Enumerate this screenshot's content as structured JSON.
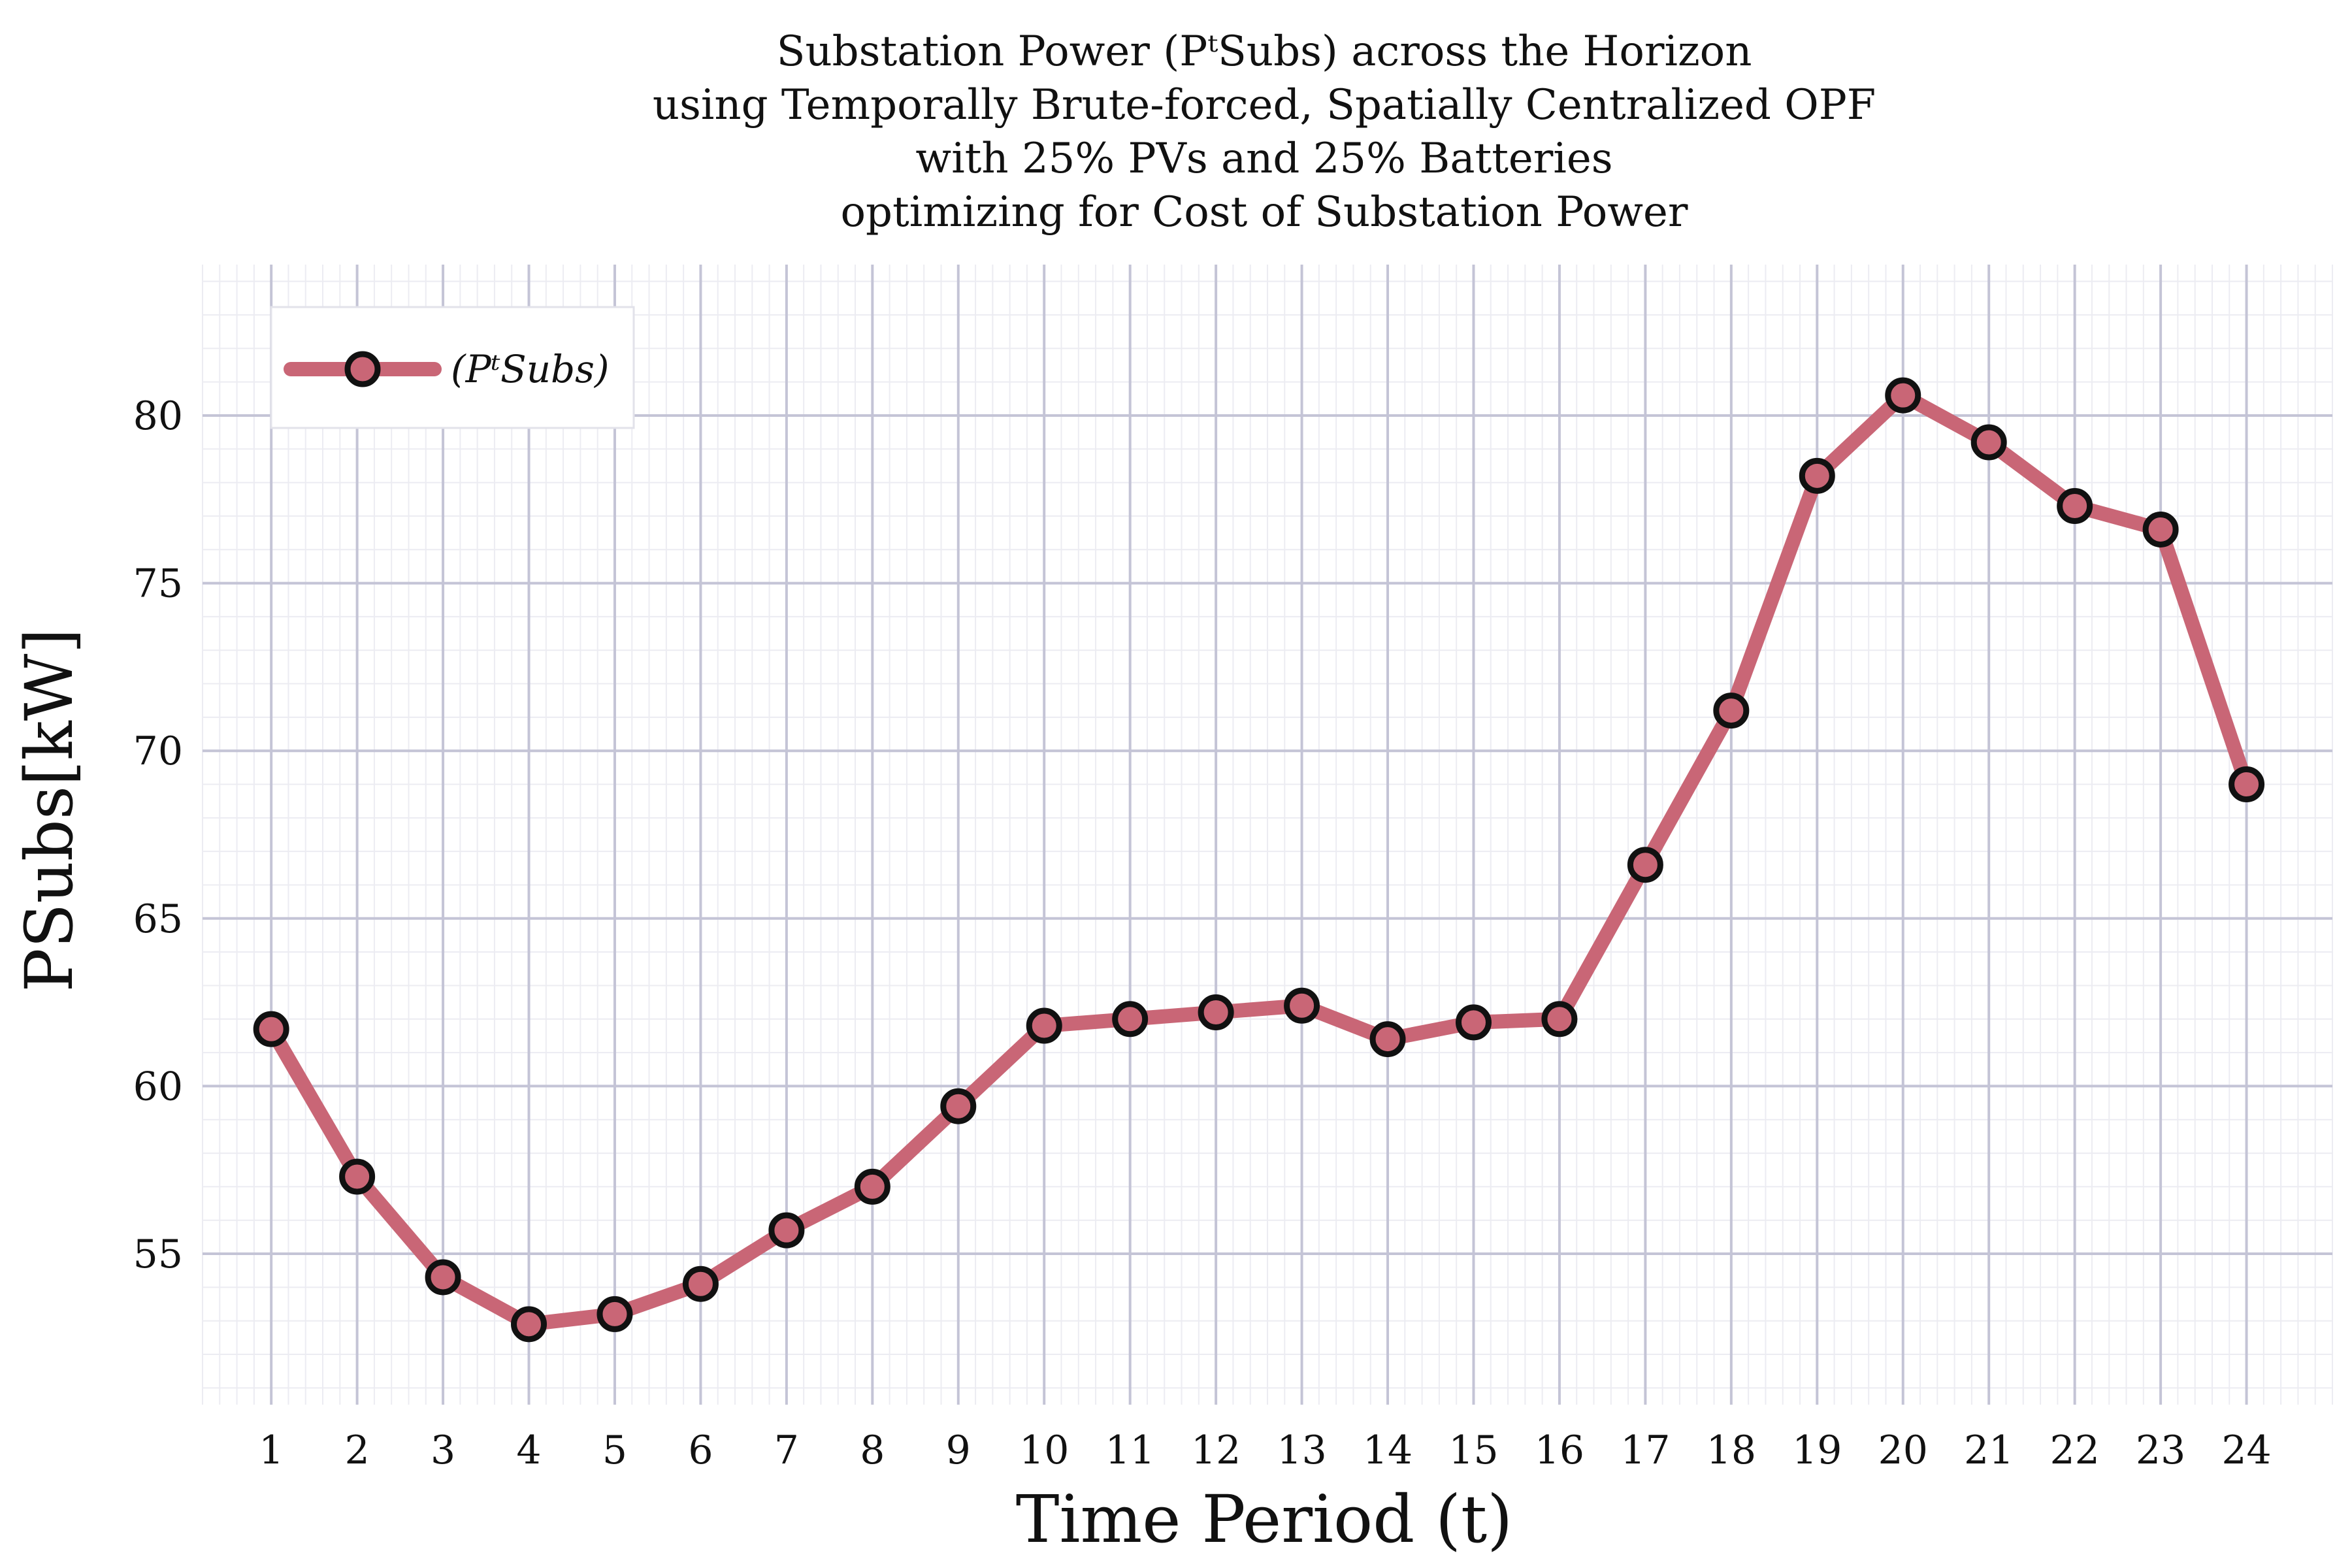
{
  "chart_data": {
    "type": "line",
    "title_lines": [
      "Substation Power (PᵗSubs) across the Horizon",
      "using Temporally Brute-forced, Spatially Centralized OPF",
      "with 25% PVs and 25% Batteries",
      "optimizing for Cost of Substation Power"
    ],
    "xlabel": "Time Period (t)",
    "ylabel": "PSubs[kW]",
    "x": [
      1,
      2,
      3,
      4,
      5,
      6,
      7,
      8,
      9,
      10,
      11,
      12,
      13,
      14,
      15,
      16,
      17,
      18,
      19,
      20,
      21,
      22,
      23,
      24
    ],
    "series": [
      {
        "name": "(PᵗSubs)",
        "values": [
          61.7,
          57.3,
          54.3,
          52.9,
          53.2,
          54.1,
          55.7,
          57.0,
          59.4,
          61.8,
          62.0,
          62.2,
          62.4,
          61.4,
          61.9,
          62.0,
          66.6,
          71.2,
          78.2,
          80.6,
          79.2,
          77.3,
          76.6,
          69.0
        ]
      }
    ],
    "xlim": [
      0.2,
      25.0
    ],
    "ylim": [
      50.5,
      84.5
    ],
    "yticks": [
      55,
      60,
      65,
      70,
      75,
      80
    ],
    "grid": true,
    "legend_position": "top-left",
    "colors": {
      "line": "#c96676",
      "marker_edge": "#111111",
      "major_grid": "#c4c4d6",
      "minor_grid": "#ececf2"
    }
  }
}
